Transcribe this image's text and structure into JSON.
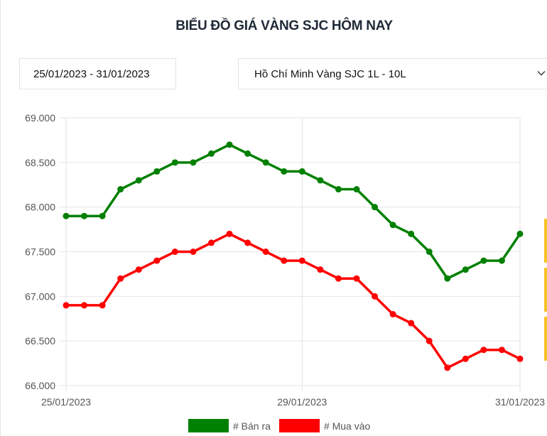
{
  "header": {
    "title": "BIỂU ĐỒ GIÁ VÀNG SJC HÔM NAY"
  },
  "filters": {
    "date_range": "25/01/2023 - 31/01/2023",
    "location_product": "Hồ Chí Minh Vàng SJC 1L - 10L",
    "dropdown_icon": "chevron-down-icon"
  },
  "legend": {
    "sell_label": "# Bán ra",
    "buy_label": "# Mua vào"
  },
  "colors": {
    "sell": "#008000",
    "buy": "#ff0000",
    "grid": "#e5e5e5",
    "accent_side": "#f7c325"
  },
  "chart_data": {
    "type": "line",
    "title": "BIỂU ĐỒ GIÁ VÀNG SJC HÔM NAY",
    "xlabel": "",
    "ylabel": "",
    "ylim": [
      66000,
      69000
    ],
    "y_ticks": [
      "69.000",
      "68.500",
      "68.000",
      "67.500",
      "67.000",
      "66.500",
      "66.000"
    ],
    "x_tick_labels": [
      "25/01/2023",
      "29/01/2023",
      "31/01/2023"
    ],
    "x_tick_indices": [
      0,
      13,
      25
    ],
    "grid": true,
    "legend_position": "bottom",
    "x": [
      1,
      2,
      3,
      4,
      5,
      6,
      7,
      8,
      9,
      10,
      11,
      12,
      13,
      14,
      15,
      16,
      17,
      18,
      19,
      20,
      21,
      22,
      23,
      24,
      25,
      26
    ],
    "series": [
      {
        "name": "# Bán ra",
        "color": "#008000",
        "values": [
          67900,
          67900,
          67900,
          68200,
          68300,
          68400,
          68500,
          68500,
          68600,
          68700,
          68600,
          68500,
          68400,
          68400,
          68300,
          68200,
          68200,
          68000,
          67800,
          67700,
          67500,
          67200,
          67300,
          67400,
          67400,
          67700
        ]
      },
      {
        "name": "# Mua vào",
        "color": "#ff0000",
        "values": [
          66900,
          66900,
          66900,
          67200,
          67300,
          67400,
          67500,
          67500,
          67600,
          67700,
          67600,
          67500,
          67400,
          67400,
          67300,
          67200,
          67200,
          67000,
          66800,
          66700,
          66500,
          66200,
          66300,
          66400,
          66400,
          66300
        ]
      }
    ]
  }
}
